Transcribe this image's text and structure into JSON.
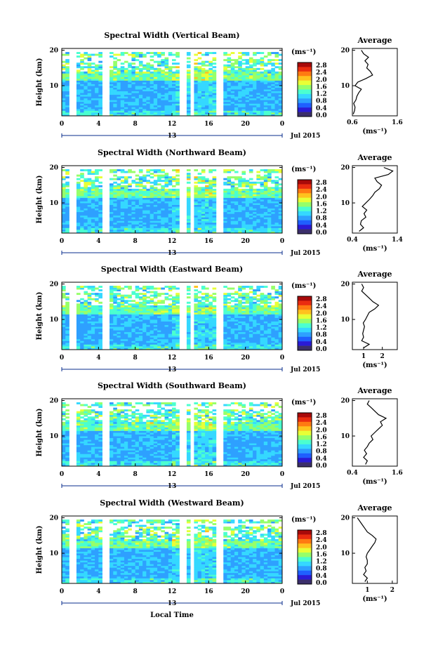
{
  "chart_data": {
    "type": "heatmap",
    "x_axis": {
      "label": "Local Time",
      "ticks": [
        "0",
        "4",
        "8",
        "12",
        "16",
        "20",
        "0"
      ],
      "date_marker": "13",
      "date_label": "Jul 2015"
    },
    "y_axis": {
      "label": "Height (km)",
      "ticks": [
        "20",
        "10"
      ],
      "range": [
        1.5,
        20.5
      ]
    },
    "colorbar": {
      "unit": "(ms⁻¹)",
      "ticks": [
        "2.8",
        "2.4",
        "2.0",
        "1.6",
        "1.2",
        "0.8",
        "0.4",
        "0.0"
      ],
      "colors": [
        "#3b2f6b",
        "#2a1bd6",
        "#1f5fff",
        "#2ea0ff",
        "#35d8ff",
        "#4bffd0",
        "#96ff6a",
        "#e8ff36",
        "#ffc21e",
        "#ff7a12",
        "#ea2c10",
        "#a80a0a"
      ]
    },
    "data_gaps_hours": [
      [
        0.7,
        1.5
      ],
      [
        4.6,
        5.3
      ],
      [
        5.9,
        6.2
      ],
      [
        13.0,
        13.4
      ],
      [
        13.8,
        14.2
      ],
      [
        16.7,
        17.6
      ]
    ],
    "panels": [
      {
        "title": "Spectral Width (Vertical Beam)",
        "average": {
          "title": "Average",
          "unit": "(ms⁻¹)",
          "xlim": [
            0.6,
            1.6
          ],
          "xticks": [
            "0.6",
            "1.6"
          ],
          "yticks": [
            "20",
            "10"
          ],
          "height_km": [
            2,
            3,
            4,
            5,
            6,
            7,
            8,
            9,
            10,
            11,
            12,
            13,
            14,
            15,
            16,
            17,
            18,
            19,
            20
          ],
          "width_ms": [
            0.62,
            0.65,
            0.66,
            0.63,
            0.68,
            0.7,
            0.74,
            0.8,
            0.66,
            0.72,
            0.9,
            1.05,
            1.0,
            0.92,
            0.95,
            0.88,
            0.96,
            0.85,
            0.8
          ]
        }
      },
      {
        "title": "Spectral Width (Northward Beam)",
        "average": {
          "title": "Average",
          "unit": "(ms⁻¹)",
          "xlim": [
            0.4,
            1.4
          ],
          "xticks": [
            "0.4",
            "1.4"
          ],
          "yticks": [
            "20",
            "10"
          ],
          "height_km": [
            2,
            3,
            4,
            5,
            6,
            7,
            8,
            9,
            10,
            11,
            12,
            13,
            14,
            15,
            16,
            17,
            18,
            19,
            20
          ],
          "width_ms": [
            0.55,
            0.65,
            0.58,
            0.6,
            0.7,
            0.66,
            0.72,
            0.62,
            0.7,
            0.78,
            0.85,
            0.9,
            1.0,
            1.05,
            0.95,
            0.9,
            1.2,
            1.3,
            1.1
          ]
        }
      },
      {
        "title": "Spectral Width (Eastward Beam)",
        "average": {
          "title": "Average",
          "unit": "(ms⁻¹)",
          "xlim": [
            0.4,
            2.8
          ],
          "xticks": [
            "1",
            "2"
          ],
          "yticks": [
            "20",
            "10"
          ],
          "height_km": [
            2,
            3,
            4,
            5,
            6,
            7,
            8,
            9,
            10,
            11,
            12,
            13,
            14,
            15,
            16,
            17,
            18,
            19,
            20
          ],
          "width_ms": [
            1.0,
            1.3,
            0.9,
            1.0,
            0.95,
            1.0,
            1.05,
            0.98,
            1.1,
            1.2,
            1.3,
            1.6,
            1.8,
            1.5,
            1.3,
            1.1,
            0.9,
            1.0,
            0.9
          ]
        }
      },
      {
        "title": "Spectral Width (Southward Beam)",
        "average": {
          "title": "Average",
          "unit": "(ms⁻¹)",
          "xlim": [
            0.4,
            1.6
          ],
          "xticks": [
            "0.4",
            "1.6"
          ],
          "yticks": [
            "20",
            "10"
          ],
          "height_km": [
            2,
            3,
            4,
            5,
            6,
            7,
            8,
            9,
            10,
            11,
            12,
            13,
            14,
            15,
            16,
            17,
            18,
            19,
            20
          ],
          "width_ms": [
            0.75,
            0.8,
            0.7,
            0.78,
            0.72,
            0.8,
            0.85,
            0.95,
            0.9,
            1.0,
            1.1,
            1.2,
            1.15,
            1.3,
            1.1,
            1.0,
            0.9,
            0.8,
            0.85
          ]
        }
      },
      {
        "title": "Spectral Width (Westward Beam)",
        "average": {
          "title": "Average",
          "unit": "(ms⁻¹)",
          "xlim": [
            0.4,
            2.2
          ],
          "xticks": [
            "1",
            "2"
          ],
          "yticks": [
            "20",
            "10"
          ],
          "height_km": [
            2,
            3,
            4,
            5,
            6,
            7,
            8,
            9,
            10,
            11,
            12,
            13,
            14,
            15,
            16,
            17,
            18,
            19,
            20
          ],
          "width_ms": [
            0.9,
            1.0,
            0.85,
            0.95,
            0.9,
            1.0,
            1.0,
            0.95,
            1.0,
            1.1,
            1.2,
            1.3,
            1.35,
            1.2,
            1.0,
            0.9,
            0.8,
            0.7,
            0.6
          ]
        }
      }
    ]
  }
}
